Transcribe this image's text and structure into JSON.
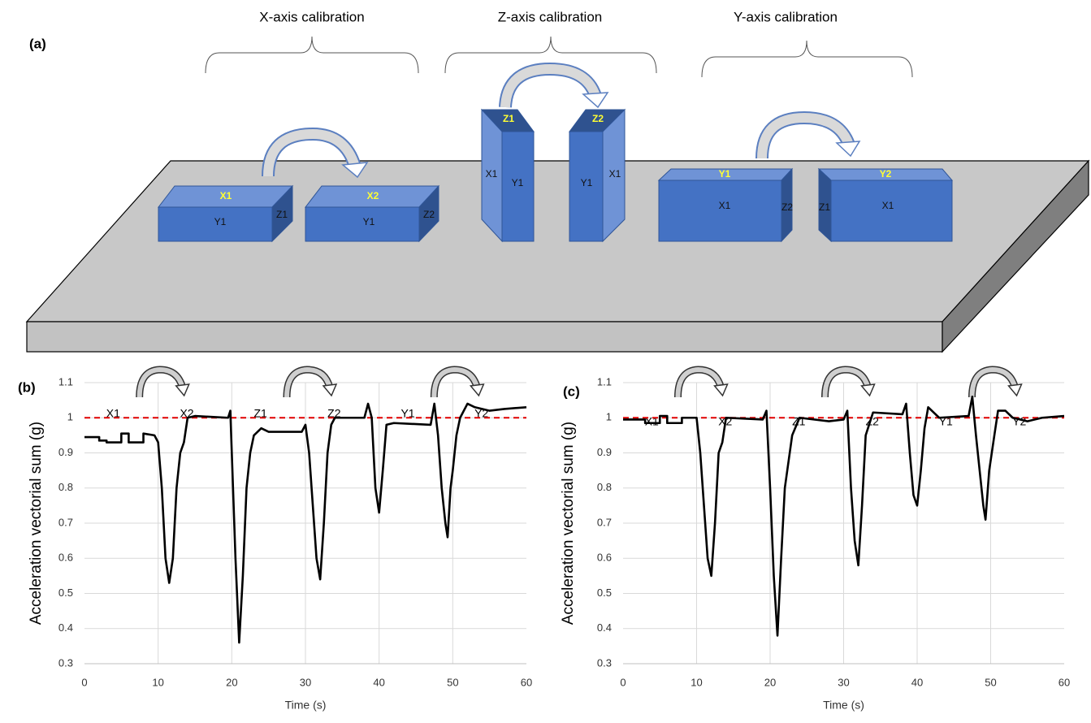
{
  "diagram": {
    "label": "(a)",
    "groups": [
      "X-axis calibration",
      "Z-axis calibration",
      "Y-axis calibration"
    ],
    "boxes": [
      {
        "top": "X1",
        "front": "Y1",
        "side": "Z1"
      },
      {
        "top": "X2",
        "front": "Y1",
        "side": "Z2"
      },
      {
        "top": "Z1",
        "front": "Y1",
        "side": "X1"
      },
      {
        "top": "Z2",
        "front": "Y1",
        "side": "X1"
      },
      {
        "top": "Y1",
        "front": "X1",
        "side": "Z2"
      },
      {
        "top": "Y2",
        "front": "X1",
        "side": "Z1"
      }
    ]
  },
  "chart_data": [
    {
      "type": "line",
      "panel": "(b)",
      "x_label": "Time (s)",
      "y_label": "Acceleration vectorial sum (g)",
      "segments": [
        "X1",
        "X2",
        "Z1",
        "Z2",
        "Y1",
        "Y2"
      ],
      "xlim": [
        0,
        60
      ],
      "ylim": [
        0.3,
        1.1
      ],
      "xticks": [
        0,
        10,
        20,
        30,
        40,
        50,
        60
      ],
      "yticks": [
        0.3,
        0.4,
        0.5,
        0.6,
        0.7,
        0.8,
        0.9,
        1,
        1.1
      ],
      "grid": true,
      "color": "#000000",
      "reference": {
        "value": 1,
        "color": "#e00000"
      },
      "x": [
        0,
        2,
        2,
        3,
        3,
        5,
        5,
        6,
        6,
        8,
        8,
        9.5,
        10,
        10.5,
        11,
        11.5,
        12,
        12.5,
        13,
        13.5,
        14,
        15,
        19.5,
        19.8,
        20,
        20.5,
        21,
        21.5,
        22,
        22.5,
        23,
        24,
        25,
        29.5,
        30,
        30.5,
        31,
        31.5,
        32,
        32.5,
        33,
        33.5,
        34,
        38,
        38.5,
        39,
        39.5,
        40,
        40.5,
        41,
        42,
        47,
        47.5,
        48,
        48.5,
        49,
        49.3,
        49.7,
        50,
        50.5,
        51,
        52,
        53,
        55,
        57,
        60
      ],
      "values": [
        0.945,
        0.945,
        0.935,
        0.935,
        0.93,
        0.93,
        0.955,
        0.955,
        0.93,
        0.93,
        0.955,
        0.95,
        0.93,
        0.8,
        0.6,
        0.53,
        0.6,
        0.8,
        0.9,
        0.93,
        1.0,
        1.005,
        1.0,
        1.02,
        0.9,
        0.6,
        0.36,
        0.55,
        0.8,
        0.9,
        0.95,
        0.97,
        0.96,
        0.96,
        0.98,
        0.9,
        0.75,
        0.6,
        0.54,
        0.7,
        0.9,
        0.98,
        1.0,
        1.0,
        1.04,
        1.0,
        0.8,
        0.73,
        0.85,
        0.98,
        0.985,
        0.98,
        1.04,
        0.95,
        0.8,
        0.7,
        0.66,
        0.8,
        0.85,
        0.95,
        1.0,
        1.04,
        1.03,
        1.02,
        1.025,
        1.03
      ]
    },
    {
      "type": "line",
      "panel": "(c)",
      "x_label": "Time (s)",
      "y_label": "Acceleration vectorial sum (g)",
      "segments": [
        "X1",
        "X2",
        "Z1",
        "Z2",
        "Y1",
        "Y2"
      ],
      "xlim": [
        0,
        60
      ],
      "ylim": [
        0.3,
        1.1
      ],
      "xticks": [
        0,
        10,
        20,
        30,
        40,
        50,
        60
      ],
      "yticks": [
        0.3,
        0.4,
        0.5,
        0.6,
        0.7,
        0.8,
        0.9,
        1,
        1.1
      ],
      "grid": true,
      "color": "#000000",
      "reference": {
        "value": 1,
        "color": "#e00000"
      },
      "x": [
        0,
        3,
        3,
        5,
        5,
        6,
        6,
        8,
        8,
        10,
        10.5,
        11,
        11.5,
        12,
        12.5,
        13,
        13.5,
        14,
        19,
        19.5,
        20,
        20.5,
        21,
        21.5,
        22,
        23,
        24,
        28,
        30,
        30.5,
        31,
        31.5,
        32,
        32.5,
        33,
        34,
        38,
        38.5,
        39,
        39.5,
        40,
        40.5,
        41,
        41.5,
        43,
        47,
        47.5,
        48,
        48.5,
        49,
        49.3,
        49.8,
        50.5,
        51,
        52,
        53,
        55,
        57,
        60
      ],
      "values": [
        0.995,
        0.995,
        0.985,
        0.985,
        1.005,
        1.005,
        0.985,
        0.985,
        1.0,
        1.0,
        0.9,
        0.75,
        0.6,
        0.55,
        0.7,
        0.9,
        0.93,
        1.0,
        0.995,
        1.02,
        0.8,
        0.55,
        0.38,
        0.6,
        0.8,
        0.95,
        1.0,
        0.99,
        0.995,
        1.02,
        0.8,
        0.65,
        0.58,
        0.75,
        0.95,
        1.015,
        1.01,
        1.04,
        0.9,
        0.78,
        0.75,
        0.85,
        0.97,
        1.03,
        1.0,
        1.005,
        1.06,
        0.95,
        0.85,
        0.75,
        0.71,
        0.85,
        0.95,
        1.02,
        1.02,
        1.0,
        0.99,
        1.0,
        1.005
      ]
    }
  ]
}
